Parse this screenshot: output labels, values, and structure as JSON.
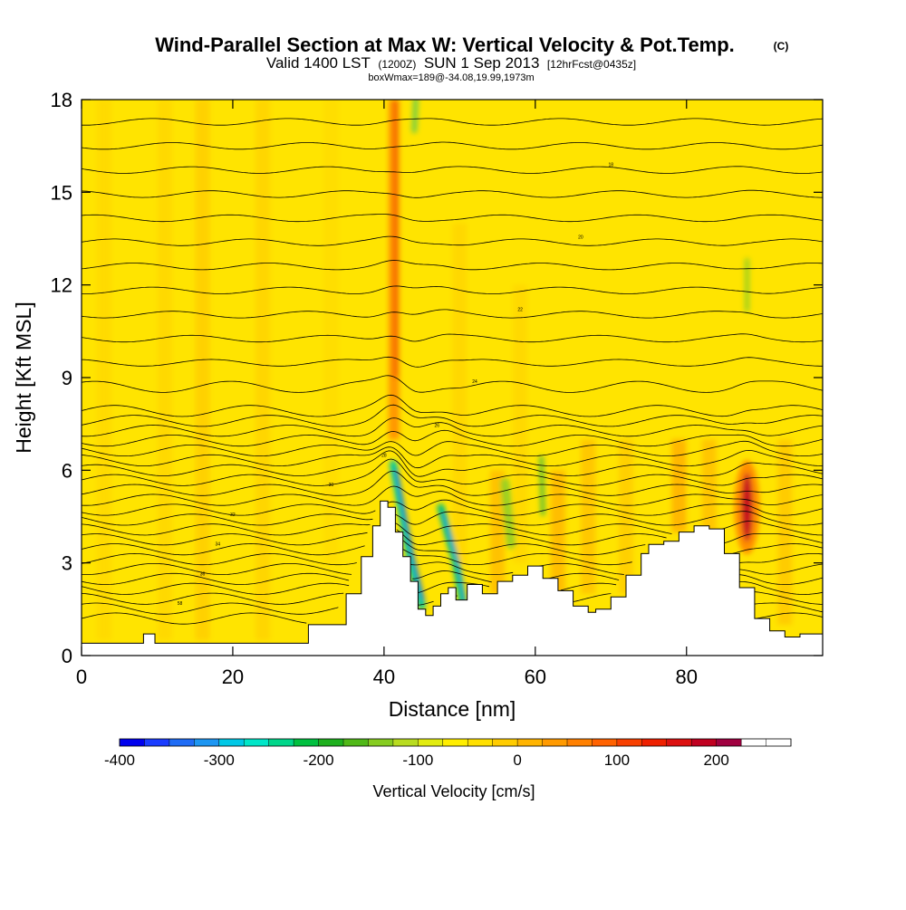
{
  "chart_data": {
    "type": "heatmap",
    "title_main": "Wind-Parallel Section at Max W: Vertical Velocity & Pot.Temp.",
    "title_mark": "(C)",
    "subtitle": {
      "valid_text": "Valid 1400 LST",
      "utc_text": "(1200Z)",
      "date_text": "SUN 1 Sep 2013",
      "fcst_text": "[12hrFcst@0435z]"
    },
    "info_line": "boxWmax=189@-34.08,19.99,1973m",
    "xlabel": "Distance [nm]",
    "ylabel": "Height [Kft MSL]",
    "xlim": [
      0,
      98
    ],
    "ylim": [
      0,
      18
    ],
    "x_ticks": [
      0,
      20,
      40,
      60,
      80
    ],
    "x_tick_labels": [
      "0",
      "20",
      "40",
      "60",
      "80"
    ],
    "y_ticks": [
      0,
      3,
      6,
      9,
      12,
      15,
      18
    ],
    "y_tick_labels": [
      "0",
      "3",
      "6",
      "9",
      "12",
      "15",
      "18"
    ],
    "colorbar": {
      "label": "Vertical Velocity [cm/s]",
      "range": [
        -400,
        275
      ],
      "step": 25,
      "tick_values": [
        -400,
        -300,
        -200,
        -100,
        0,
        100,
        200
      ],
      "tick_labels": [
        "-400",
        "-300",
        "-200",
        "-100",
        "0",
        "100",
        "200"
      ],
      "colors": [
        "#0000ee",
        "#1a3cff",
        "#1f6cf5",
        "#1d96f2",
        "#00c8e6",
        "#00e6c8",
        "#00d68a",
        "#00c040",
        "#1eb01e",
        "#50b818",
        "#86cc20",
        "#b8dc20",
        "#e2ec10",
        "#ffee00",
        "#ffe000",
        "#ffcc00",
        "#ffb400",
        "#ff9a00",
        "#ff8000",
        "#ff6200",
        "#f84000",
        "#ee2000",
        "#dc1010",
        "#c00020",
        "#a00040"
      ]
    },
    "terrain": {
      "x": [
        0,
        8,
        8.2,
        9.5,
        9.7,
        28,
        30,
        33,
        35,
        37,
        38.5,
        39.5,
        40.5,
        41.5,
        42.5,
        43.5,
        44.5,
        45.5,
        46.5,
        47.5,
        48.5,
        49.5,
        51,
        53,
        55,
        57,
        59,
        61,
        63,
        65,
        67,
        68,
        70,
        72,
        74,
        75,
        77,
        79,
        81,
        83,
        85,
        87,
        89,
        91,
        93,
        95,
        98
      ],
      "height_kft": [
        0.4,
        0.4,
        0.7,
        0.7,
        0.4,
        0.4,
        1.0,
        1.0,
        2.0,
        3.2,
        4.2,
        5.0,
        4.8,
        4.0,
        3.2,
        2.4,
        1.5,
        1.3,
        1.6,
        2.0,
        2.2,
        1.8,
        2.3,
        2.0,
        2.4,
        2.6,
        2.9,
        2.5,
        2.1,
        1.6,
        1.4,
        1.5,
        1.9,
        2.6,
        3.3,
        3.6,
        3.7,
        4.0,
        4.2,
        4.1,
        3.3,
        2.2,
        1.2,
        0.8,
        0.6,
        0.7,
        0.6
      ]
    },
    "updraft_maximum": {
      "x": 88,
      "height_kft": 4.8,
      "value_cms": 189
    },
    "theta_contour_labels": [
      "58",
      "36",
      "34",
      "32",
      "30",
      "28",
      "26",
      "24",
      "22",
      "20",
      "18",
      "16",
      "14",
      "12",
      "10",
      "08",
      "06",
      "04",
      "02",
      "00"
    ]
  }
}
